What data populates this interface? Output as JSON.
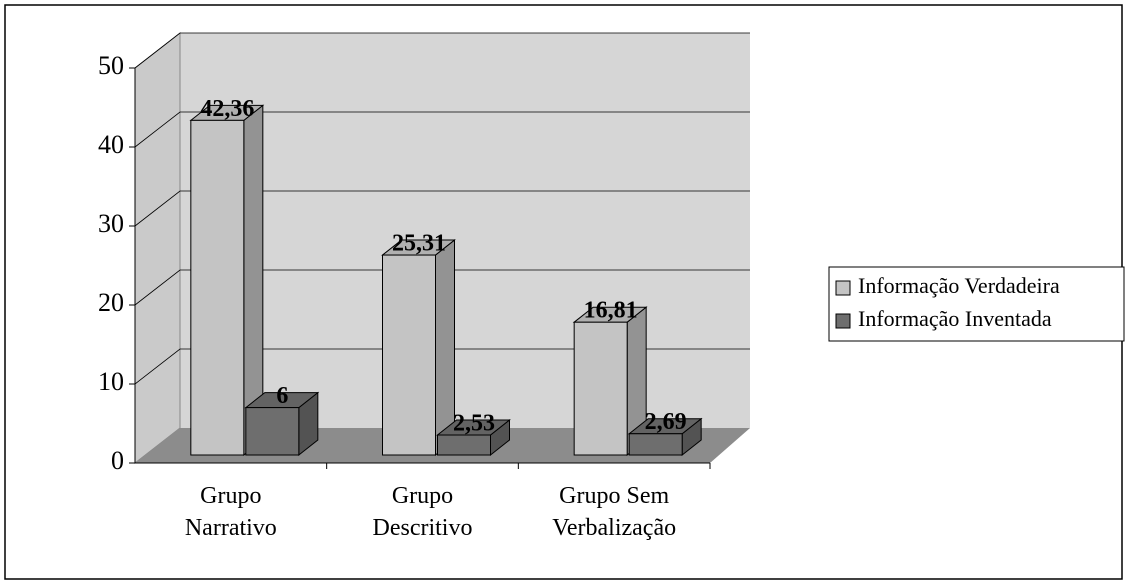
{
  "chart_data": {
    "type": "bar3d",
    "categories": [
      "Grupo Narrativo",
      "Grupo Descritivo",
      "Grupo Sem Verbalização"
    ],
    "series": [
      {
        "name": "Informação Verdadeira",
        "color": "#c4c4c4",
        "values": [
          42.36,
          25.31,
          16.81
        ],
        "value_labels": [
          "42,36",
          "25,31",
          "16,81"
        ]
      },
      {
        "name": "Informação Inventada",
        "color": "#6e6e6e",
        "values": [
          6,
          2.53,
          2.69
        ],
        "value_labels": [
          "6",
          "2,53",
          "2,69"
        ]
      }
    ],
    "ylim": [
      0,
      50
    ],
    "yticks": [
      0,
      10,
      20,
      30,
      40,
      50
    ],
    "grid": true,
    "legend": "right"
  }
}
